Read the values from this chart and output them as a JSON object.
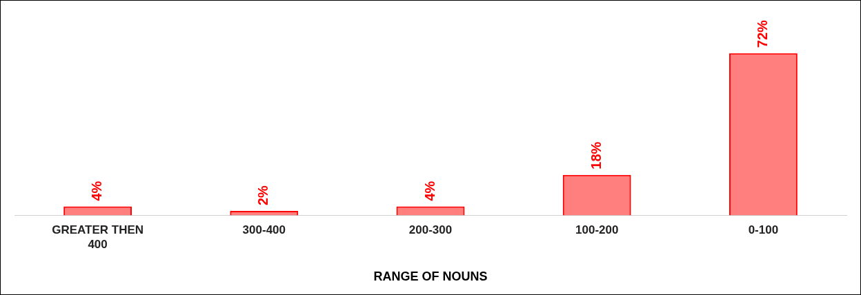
{
  "chart_data": {
    "type": "bar",
    "xlabel": "RANGE OF NOUNS",
    "categories": [
      "GREATER THEN 400",
      "300-400",
      "200-300",
      "100-200",
      "0-100"
    ],
    "values": [
      4,
      2,
      4,
      18,
      72
    ],
    "value_labels": [
      "4%",
      "2%",
      "4%",
      "18%",
      "72%"
    ],
    "color": "#ff0000",
    "grid": false,
    "legend": false
  }
}
